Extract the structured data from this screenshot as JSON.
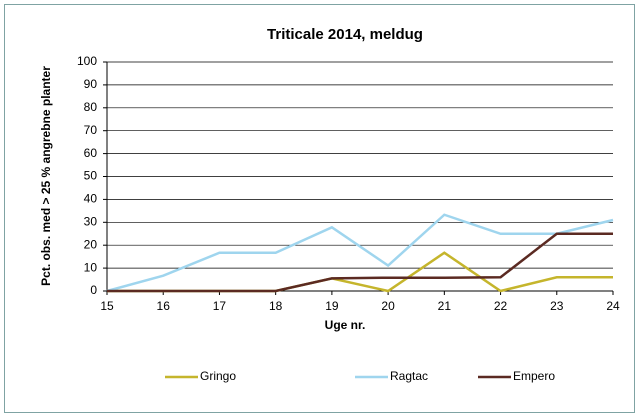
{
  "chart_data": {
    "type": "line",
    "title": "Triticale 2014, meldug",
    "x_label": "Uge nr.",
    "y_label": "Pct. obs. med > 25 % angrebne planter",
    "x": [
      15,
      16,
      17,
      18,
      19,
      20,
      21,
      22,
      23,
      24
    ],
    "xlim": [
      15,
      24
    ],
    "xticks": [
      15,
      16,
      17,
      18,
      19,
      20,
      21,
      22,
      23,
      24
    ],
    "ylim": [
      0,
      100
    ],
    "yticks": [
      0,
      10,
      20,
      30,
      40,
      50,
      60,
      70,
      80,
      90,
      100
    ],
    "grid": true,
    "legend": "bottom",
    "series": [
      {
        "name": "Gringo",
        "color": "#c5b52c",
        "values": [
          0,
          0,
          0,
          0,
          5.5,
          0,
          16.7,
          0,
          6,
          6
        ]
      },
      {
        "name": "Ragtac",
        "color": "#9fd5ee",
        "values": [
          0,
          6.7,
          16.7,
          16.7,
          27.8,
          11.1,
          33.3,
          25,
          25,
          31
        ]
      },
      {
        "name": "Empero",
        "color": "#5b2a22",
        "values": [
          0,
          0,
          0,
          0,
          5.5,
          5.8,
          5.8,
          6,
          25,
          25
        ]
      }
    ]
  }
}
